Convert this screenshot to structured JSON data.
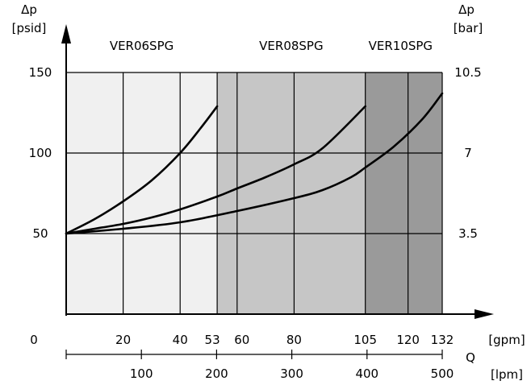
{
  "chart_data": {
    "type": "line",
    "y_axis_left": {
      "label_symbol": "Δp",
      "label_unit": "[psid]",
      "ticks": [
        50,
        100,
        150
      ],
      "range": [
        0,
        150
      ]
    },
    "y_axis_right": {
      "label_symbol": "Δp",
      "label_unit": "[bar]",
      "ticks": [
        {
          "at_psid": 150,
          "label": "10.5"
        },
        {
          "at_psid": 100,
          "label": "7"
        },
        {
          "at_psid": 50,
          "label": "3.5"
        }
      ]
    },
    "x_axis_gpm": {
      "unit": "[gpm]",
      "origin_label": "0",
      "range": [
        0,
        132
      ],
      "ticks": [
        20,
        40,
        53,
        60,
        80,
        105,
        120,
        132
      ]
    },
    "x_axis_lpm": {
      "unit": "[lpm]",
      "ticks": [
        100,
        200,
        300,
        400,
        500
      ]
    },
    "x_symbol": "Q",
    "zones": [
      {
        "label": "VER06SPG",
        "x_start": 0,
        "x_end": 53,
        "color": "#f0f0f0"
      },
      {
        "label": "VER08SPG",
        "x_start": 53,
        "x_end": 105,
        "color": "#c6c6c6"
      },
      {
        "label": "VER10SPG",
        "x_start": 105,
        "x_end": 132,
        "color": "#9a9a9a"
      }
    ],
    "series": [
      {
        "x": [
          0,
          10,
          20,
          30,
          40,
          47,
          53
        ],
        "y": [
          50,
          59,
          70,
          83,
          100,
          115,
          129
        ]
      },
      {
        "x": [
          0,
          10,
          20,
          30,
          40,
          53,
          60,
          70,
          80,
          90,
          105
        ],
        "y": [
          50,
          53,
          56,
          60,
          65,
          73,
          78,
          85,
          93,
          103,
          129
        ]
      },
      {
        "x": [
          0,
          20,
          40,
          60,
          80,
          90,
          100,
          105,
          115,
          125,
          132
        ],
        "y": [
          50,
          53,
          57,
          64,
          72,
          77,
          85,
          91,
          104,
          121,
          137
        ]
      }
    ]
  }
}
